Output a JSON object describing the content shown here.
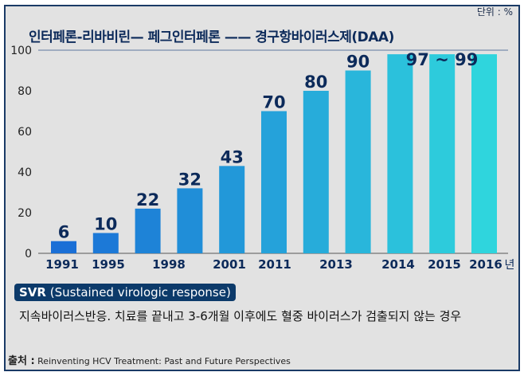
{
  "unit_label": "단위 : %",
  "header_title": "인터페론-리바비린— 페그인터페론 —— 경구항바이러스제(DAA)",
  "chart_data": {
    "type": "bar",
    "values": [
      6,
      10,
      22,
      32,
      43,
      70,
      80,
      90,
      98,
      98,
      98
    ],
    "data_labels": [
      "6",
      "10",
      "22",
      "32",
      "43",
      "70",
      "80",
      "90",
      "",
      "",
      ""
    ],
    "range_label": "97 ~ 99",
    "x_tick_labels": [
      "1991",
      "1995",
      "1998",
      "2001",
      "2011",
      "2013",
      "2014",
      "2015",
      "2016"
    ],
    "x_unit": "년",
    "ylim": [
      0,
      100
    ],
    "yticks": [
      0,
      20,
      40,
      60,
      80,
      100
    ],
    "grid": false,
    "colors": {
      "start": "#1a6fd6",
      "end": "#2fd5dd",
      "label": "#0c2a5a"
    }
  },
  "svr": {
    "abbr": "SVR",
    "full": "(Sustained virologic response)"
  },
  "description": "지속바이러스반응. 치료를 끝내고 3-6개월 이후에도 혈중 바이러스가 검출되지 않는 경우",
  "source": {
    "label": "출처 :",
    "text": "Reinventing HCV Treatment: Past and Future Perspectives"
  }
}
